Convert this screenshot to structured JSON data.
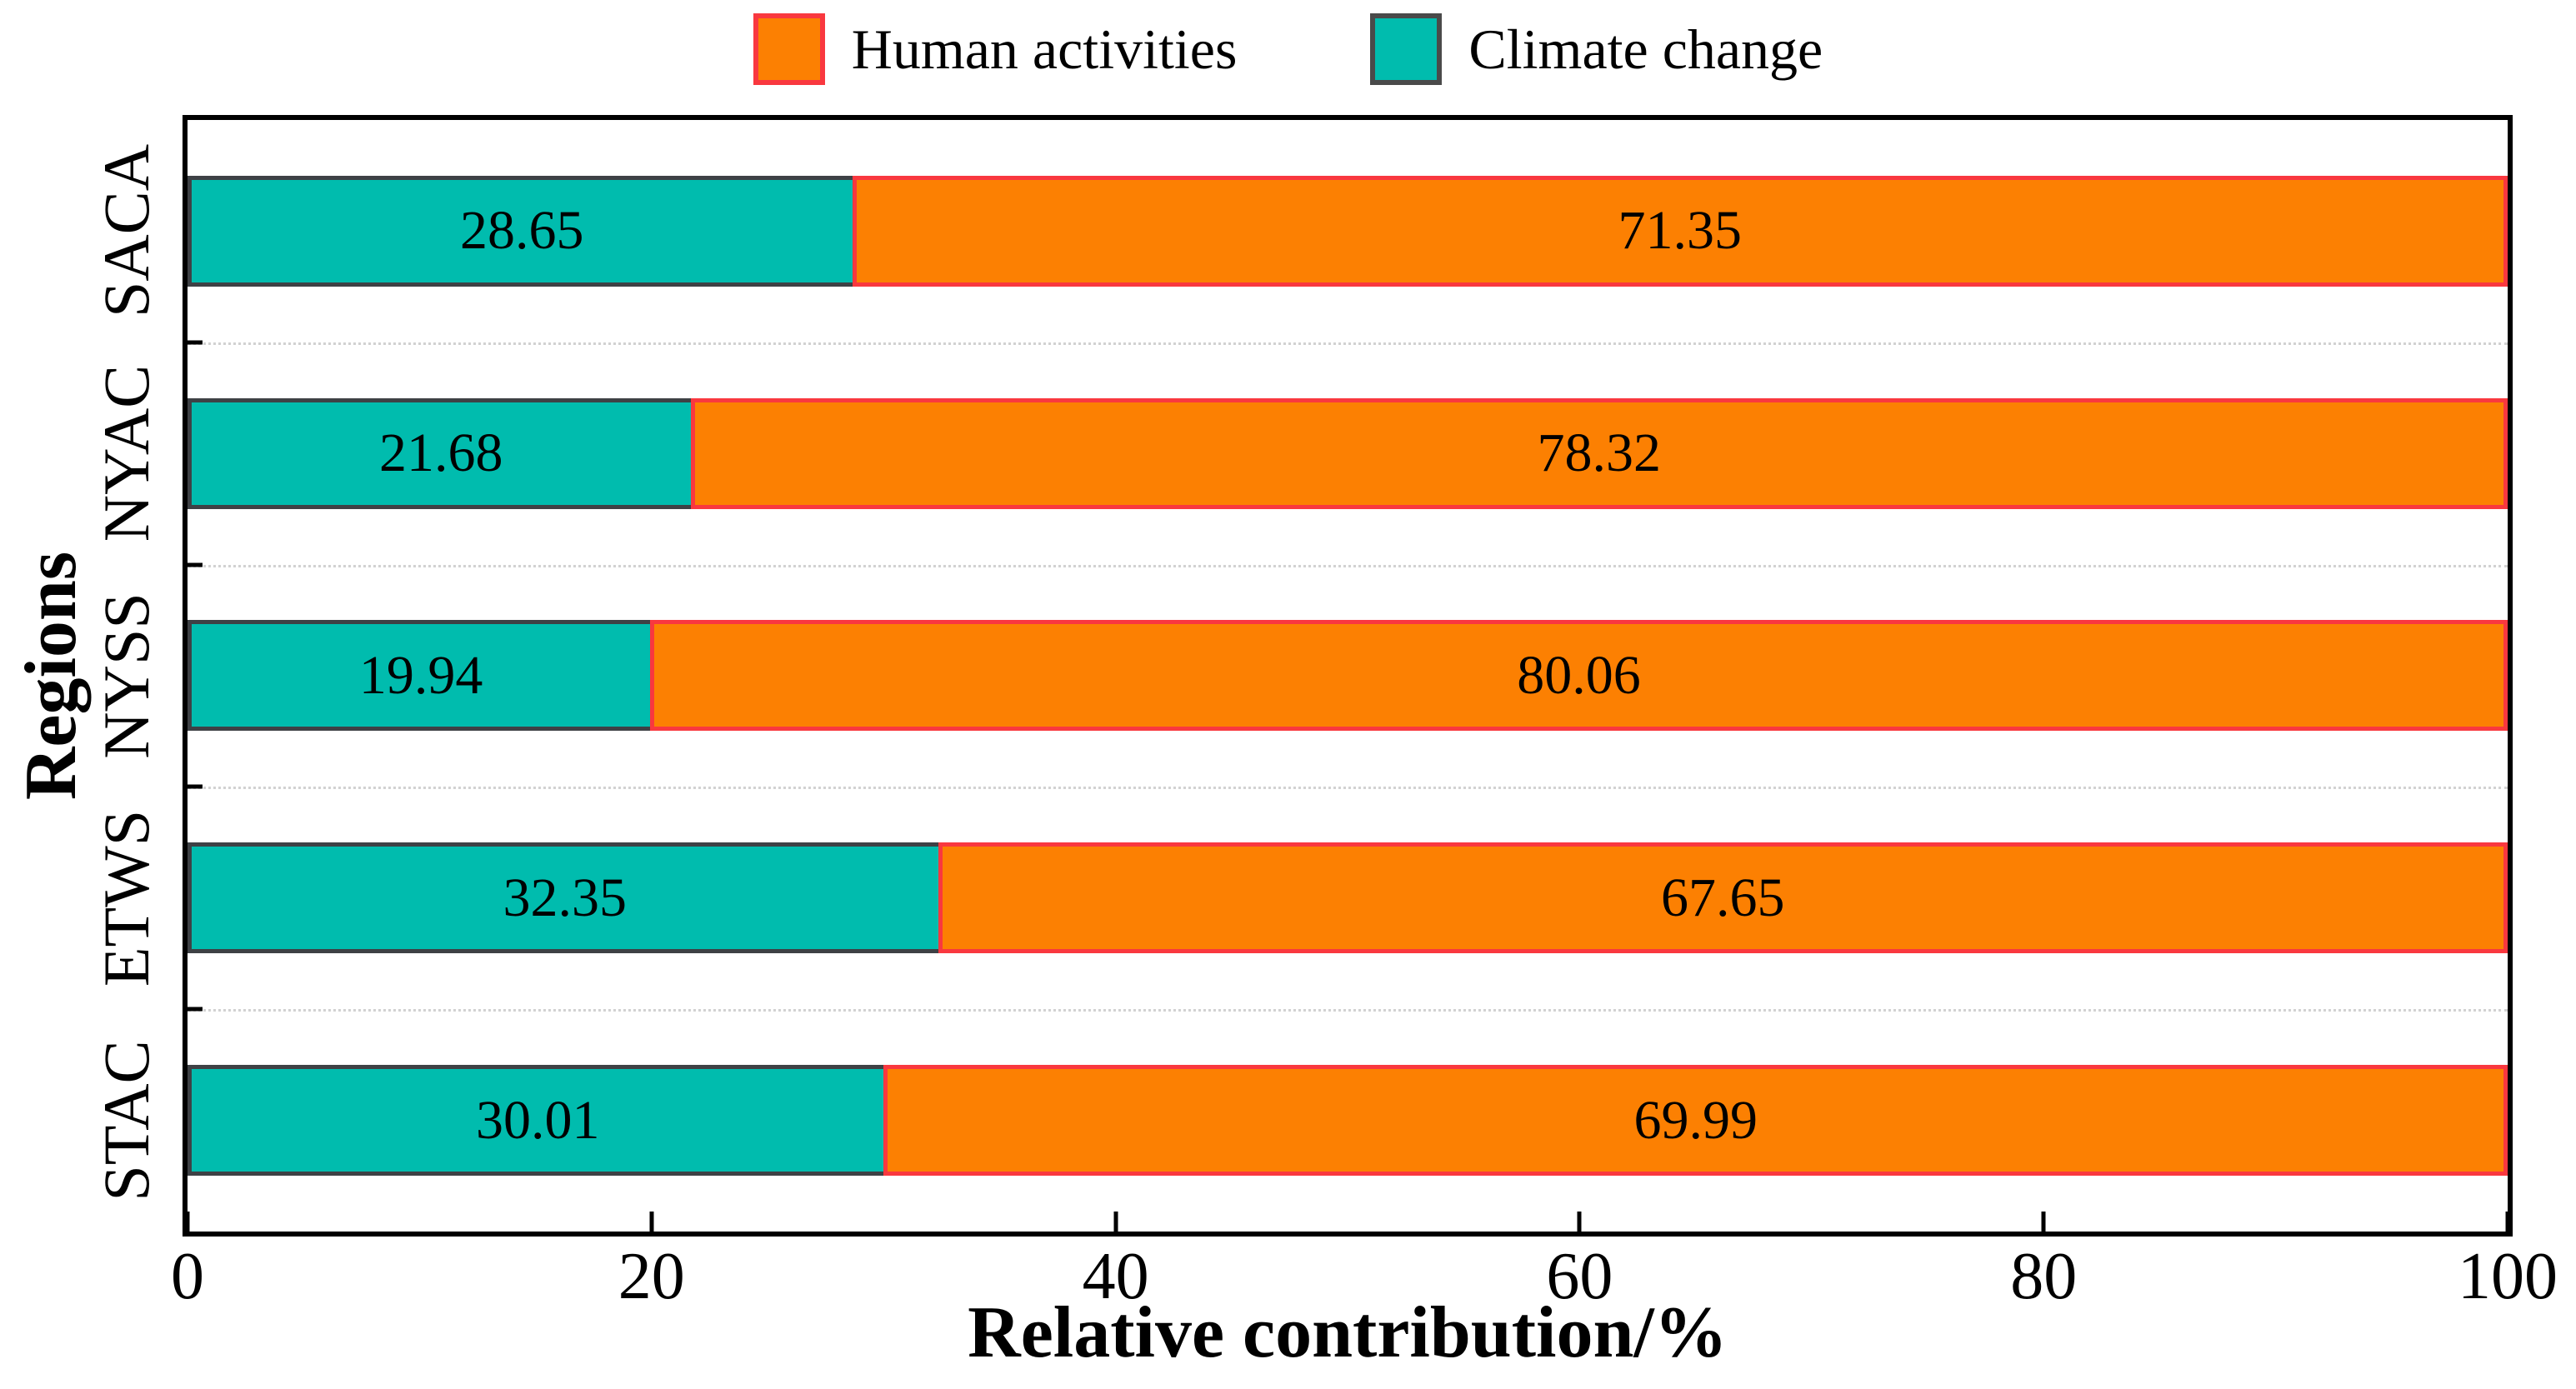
{
  "chart_data": {
    "type": "bar",
    "orientation": "horizontal",
    "stacked": true,
    "categories": [
      "SACA",
      "NYAC",
      "NYSS",
      "ETWS",
      "STAC"
    ],
    "series": [
      {
        "name": "Climate change",
        "values": [
          28.65,
          21.68,
          19.94,
          32.35,
          30.01
        ],
        "fill": "#00BCAE",
        "border": "#3E4145"
      },
      {
        "name": "Human activities",
        "values": [
          71.35,
          78.32,
          80.06,
          67.65,
          69.99
        ],
        "fill": "#FC8002",
        "border": "#F9383F"
      }
    ],
    "value_labels": [
      "28.65",
      "21.68",
      "19.94",
      "32.35",
      "30.01",
      "71.35",
      "78.32",
      "80.06",
      "67.65",
      "69.99"
    ],
    "xlabel": "Relative contribution/%",
    "ylabel": "Regions",
    "xlim": [
      0,
      100
    ],
    "x_ticks": [
      "0",
      "20",
      "40",
      "60",
      "80",
      "100"
    ],
    "grid": "dotted horizontal lines between category bands",
    "legend_position": "top-center"
  },
  "legend": {
    "items": [
      {
        "label": "Human activities",
        "fill": "#FC8002",
        "border": "#F9383F"
      },
      {
        "label": "Climate change",
        "fill": "#00BCAE",
        "border": "#4A4A4A"
      }
    ]
  },
  "colors": {
    "axis": "#000000",
    "gridline": "#d2d2d2",
    "background": "#ffffff"
  }
}
